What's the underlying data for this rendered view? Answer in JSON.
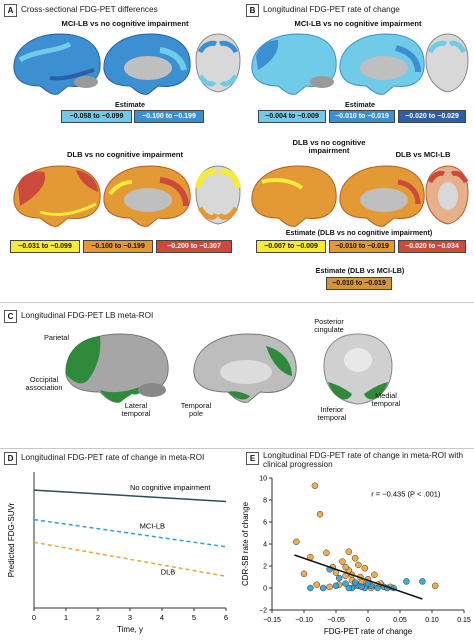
{
  "panel_a": {
    "badge": "A",
    "title": "Cross-sectional FDG-PET differences",
    "sub1": "MCI-LB vs no cognitive impairment",
    "est1": "Estimate",
    "est1_boxes": [
      "−0.058 to −0.099",
      "−0.100 to −0.199"
    ],
    "sub2": "DLB vs no cognitive impairment",
    "est2_boxes": [
      "−0.031 to −0.099",
      "−0.100 to −0.199",
      "−0.200 to −0.307"
    ]
  },
  "panel_b": {
    "badge": "B",
    "title": "Longitudinal FDG-PET rate of change",
    "sub1": "MCI-LB vs no cognitive impairment",
    "est1": "Estimate",
    "est1_boxes": [
      "−0.004 to −0.009",
      "−0.010 to −0.019",
      "−0.020 to −0.029"
    ],
    "sub2a": "DLB vs no cognitive impairment",
    "sub2b": "DLB vs MCI-LB",
    "est2": "Estimate (DLB vs no cognitive impairment)",
    "est2_boxes": [
      "−0.007 to −0.009",
      "−0.010 to −0.019",
      "−0.020 to −0.034"
    ],
    "est3": "Estimate (DLB vs MCI-LB)",
    "est3_box": "−0.010 to −0.019"
  },
  "panel_c": {
    "badge": "C",
    "title": "Longitudinal FDG-PET LB meta-ROI",
    "regions": {
      "parietal": "Parietal",
      "occipital": "Occipital association",
      "lateral_temporal": "Lateral temporal",
      "posterior_cingulate": "Posterior cingulate",
      "temporal_pole": "Temporal pole",
      "inferior_temporal": "Inferior temporal",
      "medial_temporal": "Medial temporal"
    }
  },
  "panel_d": {
    "badge": "D",
    "title": "Longitudinal FDG-PET rate of change in meta-ROI"
  },
  "panel_e": {
    "badge": "E",
    "title": "Longitudinal FDG-PET rate of change in meta-ROI with clinical progression",
    "annotation": "r = −0.435 (P < .001)"
  },
  "colors": {
    "blue_light": "#6fcbe8",
    "blue_mid": "#3c8fd0",
    "blue_dark": "#2a5fab",
    "yellow": "#f6ea3a",
    "orange": "#e39a35",
    "red": "#cc4a3c",
    "green": "#2f8a3c",
    "no_ci": "#2d4d57",
    "mci_lb": "#2f9fd6",
    "dlb": "#e9a540"
  },
  "chart_data": [
    {
      "type": "line",
      "xlabel": "Time, y",
      "ylabel": "Predicted FDG-SUVr",
      "xticks": [
        "0",
        "1",
        "2",
        "3",
        "4",
        "5",
        "6"
      ],
      "x": [
        0,
        6
      ],
      "xlim": [
        0,
        6
      ],
      "ylim": [
        1.0,
        1.6
      ],
      "series": [
        {
          "name": "No cognitive impairment",
          "values": [
            1.52,
            1.47
          ]
        },
        {
          "name": "MCI-LB",
          "values": [
            1.39,
            1.27
          ]
        },
        {
          "name": "DLB",
          "values": [
            1.29,
            1.14
          ]
        }
      ]
    },
    {
      "type": "scatter",
      "xlabel": "FDG-PET rate of change",
      "ylabel": "CDR-SB rate of change",
      "xticks": [
        "−0.15",
        "−0.10",
        "−0.05",
        "0",
        "0.05",
        "0.10",
        "0.15"
      ],
      "yticks": [
        "−2",
        "0",
        "2",
        "4",
        "6",
        "8",
        "10"
      ],
      "xlim": [
        -0.15,
        0.15
      ],
      "ylim": [
        -2,
        10
      ],
      "fit_line": {
        "x": [
          -0.115,
          0.085
        ],
        "y": [
          3.0,
          -1.0
        ]
      },
      "series": [
        {
          "group": "DLB",
          "points": [
            [
              -0.083,
              9.3
            ],
            [
              -0.112,
              4.2
            ],
            [
              -0.075,
              6.7
            ],
            [
              -0.065,
              3.2
            ],
            [
              -0.09,
              2.8
            ],
            [
              -0.03,
              3.3
            ],
            [
              -0.02,
              2.7
            ],
            [
              -0.04,
              2.4
            ],
            [
              -0.015,
              2.1
            ],
            [
              -0.005,
              1.8
            ],
            [
              -0.05,
              1.4
            ],
            [
              -0.035,
              1.1
            ],
            [
              -0.025,
              0.7
            ],
            [
              -0.01,
              0.5
            ],
            [
              0.0,
              0.8
            ],
            [
              0.01,
              1.2
            ],
            [
              -0.045,
              0.3
            ],
            [
              -0.06,
              0.1
            ],
            [
              -0.02,
              0.2
            ],
            [
              0.005,
              0.0
            ],
            [
              0.02,
              0.4
            ],
            [
              -0.08,
              0.3
            ],
            [
              -0.1,
              1.3
            ],
            [
              -0.055,
              1.9
            ],
            [
              -0.03,
              1.6
            ],
            [
              -0.012,
              1.0
            ],
            [
              0.015,
              0.3
            ],
            [
              0.035,
              0.1
            ],
            [
              0.105,
              0.2
            ],
            [
              -0.035,
              1.9
            ],
            [
              -0.025,
              1.2
            ],
            [
              -0.002,
              0.5
            ]
          ]
        },
        {
          "group": "MCI-LB",
          "points": [
            [
              -0.06,
              1.7
            ],
            [
              -0.045,
              0.9
            ],
            [
              -0.035,
              0.4
            ],
            [
              -0.025,
              0.0
            ],
            [
              -0.015,
              0.2
            ],
            [
              -0.005,
              0.0
            ],
            [
              0.005,
              0.2
            ],
            [
              0.015,
              0.0
            ],
            [
              0.025,
              0.1
            ],
            [
              0.04,
              0.0
            ],
            [
              0.06,
              0.6
            ],
            [
              0.085,
              0.6
            ],
            [
              -0.09,
              0.0
            ],
            [
              -0.07,
              0.0
            ],
            [
              -0.02,
              0.5
            ],
            [
              0.0,
              0.4
            ],
            [
              -0.03,
              0.0
            ],
            [
              -0.01,
              0.1
            ],
            [
              0.03,
              0.0
            ],
            [
              -0.05,
              0.2
            ]
          ]
        }
      ]
    }
  ]
}
